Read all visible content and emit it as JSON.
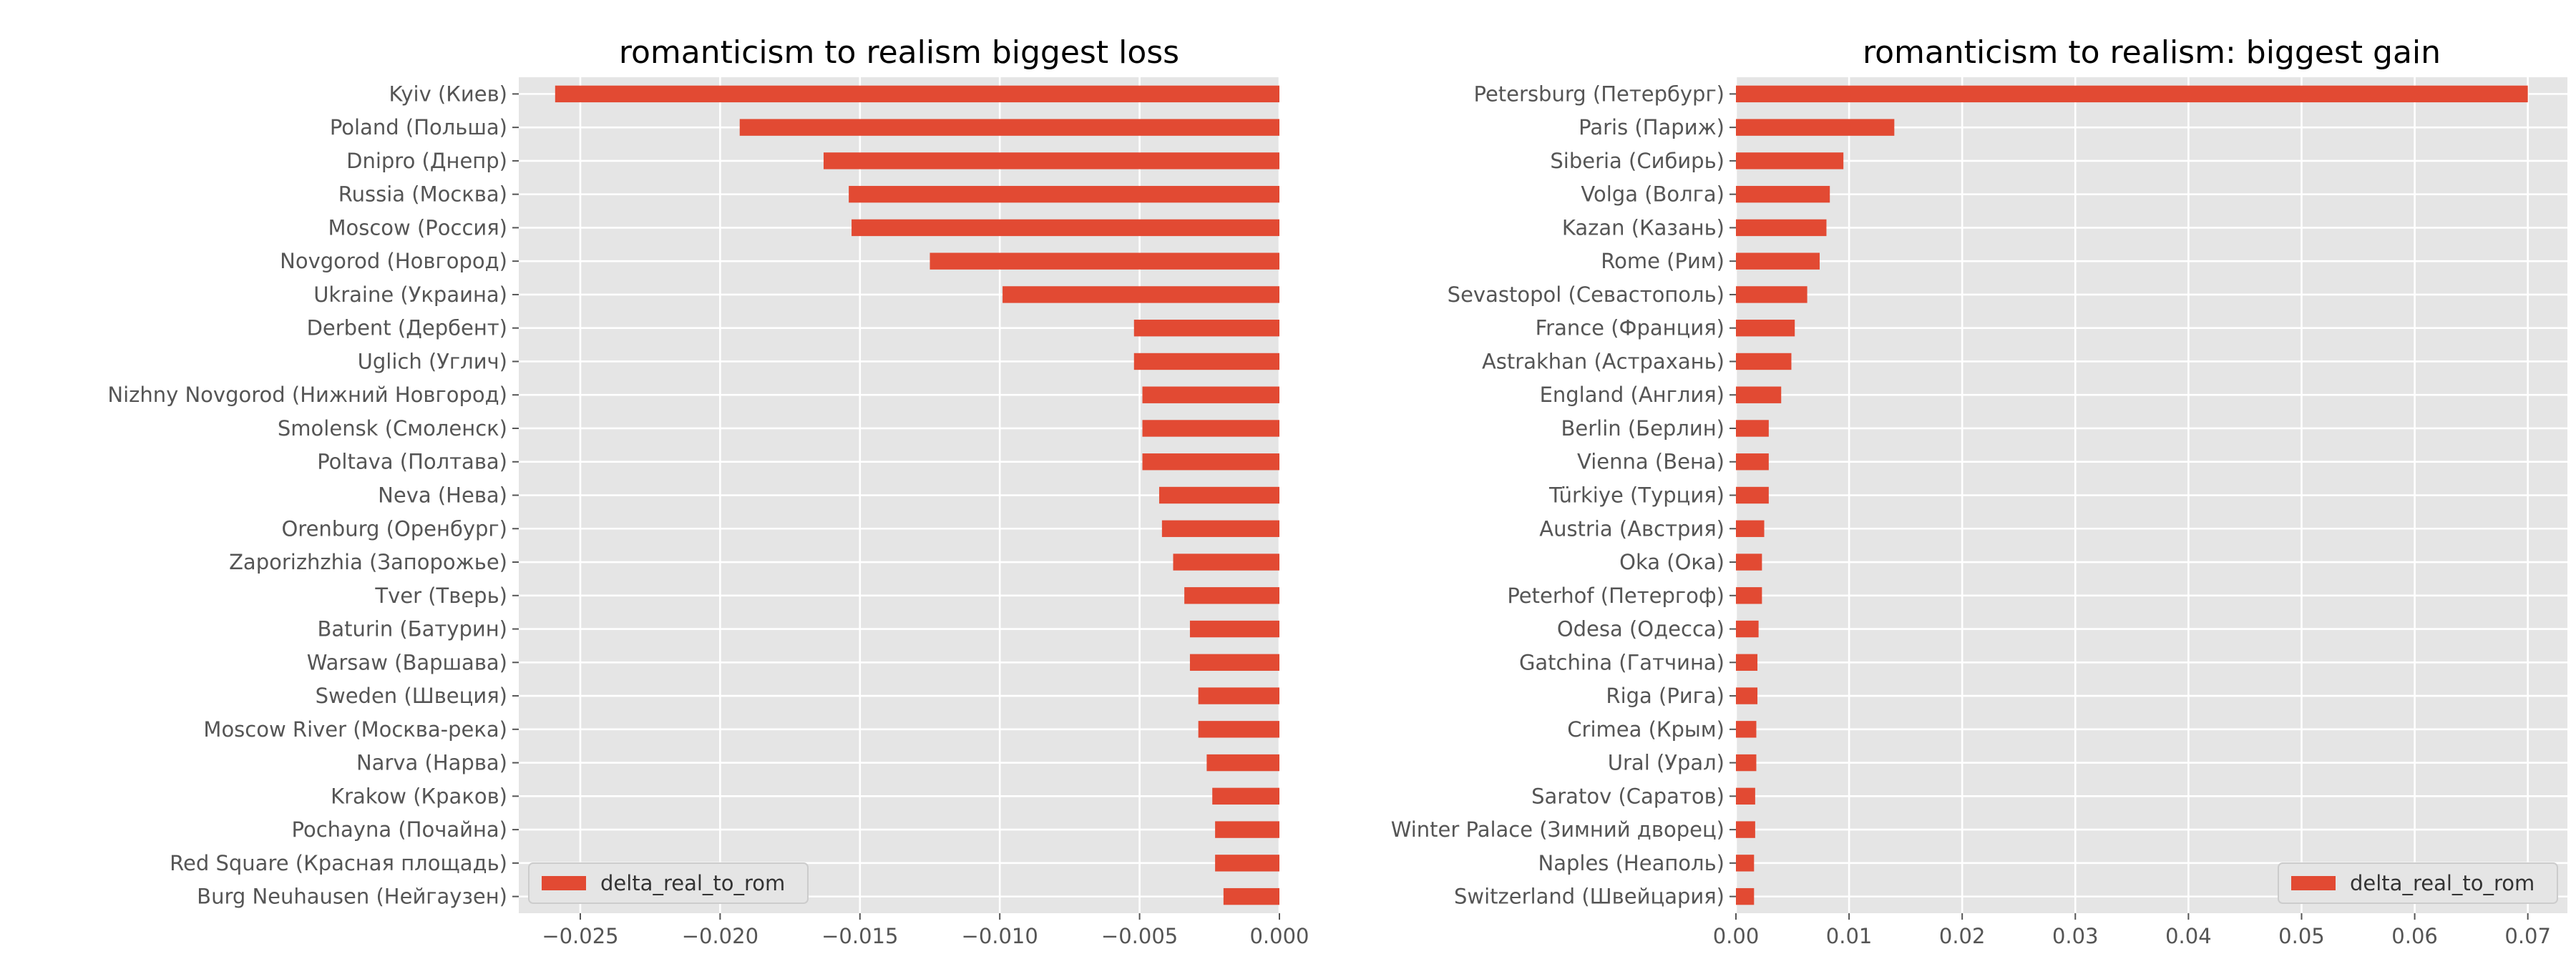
{
  "chart_data": [
    {
      "type": "bar",
      "orientation": "horizontal",
      "title": "romanticism to realism biggest loss",
      "xlabel": "",
      "ylabel": "",
      "xlim": [
        -0.0272,
        0.0
      ],
      "xticks": [
        "−0.025",
        "−0.020",
        "−0.015",
        "−0.010",
        "−0.005",
        "0.000"
      ],
      "xtick_values": [
        -0.025,
        -0.02,
        -0.015,
        -0.01,
        -0.005,
        0.0
      ],
      "grid": true,
      "legend": {
        "position": "bottom-left"
      },
      "categories": [
        "Kyiv (Киев)",
        "Poland (Польша)",
        "Dnipro (Днепр)",
        "Russia (Москва)",
        "Moscow (Россия)",
        "Novgorod (Новгород)",
        "Ukraine (Украина)",
        "Derbent (Дербент)",
        "Uglich (Углич)",
        "Nizhny Novgorod (Нижний Новгород)",
        "Smolensk (Смоленск)",
        "Poltava (Полтава)",
        "Neva (Нева)",
        "Orenburg (Оренбург)",
        "Zaporizhzhia (Запорожье)",
        "Tver (Тверь)",
        "Baturin (Батурин)",
        "Warsaw (Варшава)",
        "Sweden (Швеция)",
        "Moscow River (Москва-река)",
        "Narva (Нарва)",
        "Krakow (Краков)",
        "Pochayna (Почайна)",
        "Red Square (Красная площадь)",
        "Burg Neuhausen (Нейгаузен)"
      ],
      "series": [
        {
          "name": "delta_real_to_rom",
          "color": "#E24A33",
          "values": [
            -0.0259,
            -0.0193,
            -0.0163,
            -0.0154,
            -0.0153,
            -0.0125,
            -0.0099,
            -0.0052,
            -0.0052,
            -0.0049,
            -0.0049,
            -0.0049,
            -0.0043,
            -0.0042,
            -0.0038,
            -0.0034,
            -0.0032,
            -0.0032,
            -0.0029,
            -0.0029,
            -0.0026,
            -0.0024,
            -0.0023,
            -0.0023,
            -0.002
          ]
        }
      ]
    },
    {
      "type": "bar",
      "orientation": "horizontal",
      "title": "romanticism to realism: biggest gain",
      "xlabel": "",
      "ylabel": "",
      "xlim": [
        0.0,
        0.0735
      ],
      "xticks": [
        "0.00",
        "0.01",
        "0.02",
        "0.03",
        "0.04",
        "0.05",
        "0.06",
        "0.07"
      ],
      "xtick_values": [
        0.0,
        0.01,
        0.02,
        0.03,
        0.04,
        0.05,
        0.06,
        0.07
      ],
      "grid": true,
      "legend": {
        "position": "bottom-right"
      },
      "categories": [
        "Petersburg (Петербург)",
        "Paris (Париж)",
        "Siberia (Сибирь)",
        "Volga (Волга)",
        "Kazan (Казань)",
        "Rome (Рим)",
        "Sevastopol (Севастополь)",
        "France (Франция)",
        "Astrakhan (Астрахань)",
        "England (Англия)",
        "Berlin (Берлин)",
        "Vienna (Вена)",
        "Türkiye (Турция)",
        "Austria (Австрия)",
        "Oka (Ока)",
        "Peterhof (Петергоф)",
        "Odesa (Одесса)",
        "Gatchina (Гатчина)",
        "Riga (Рига)",
        "Crimea (Крым)",
        "Ural (Урал)",
        "Saratov (Саратов)",
        "Winter Palace (Зимний дворец)",
        "Naples (Неаполь)",
        "Switzerland (Швейцария)"
      ],
      "series": [
        {
          "name": "delta_real_to_rom",
          "color": "#E24A33",
          "values": [
            0.07,
            0.014,
            0.0095,
            0.0083,
            0.008,
            0.0074,
            0.0063,
            0.0052,
            0.0049,
            0.004,
            0.0029,
            0.0029,
            0.0029,
            0.0025,
            0.0023,
            0.0023,
            0.002,
            0.0019,
            0.0019,
            0.0018,
            0.0018,
            0.0017,
            0.0017,
            0.0016,
            0.0016
          ]
        }
      ]
    }
  ]
}
